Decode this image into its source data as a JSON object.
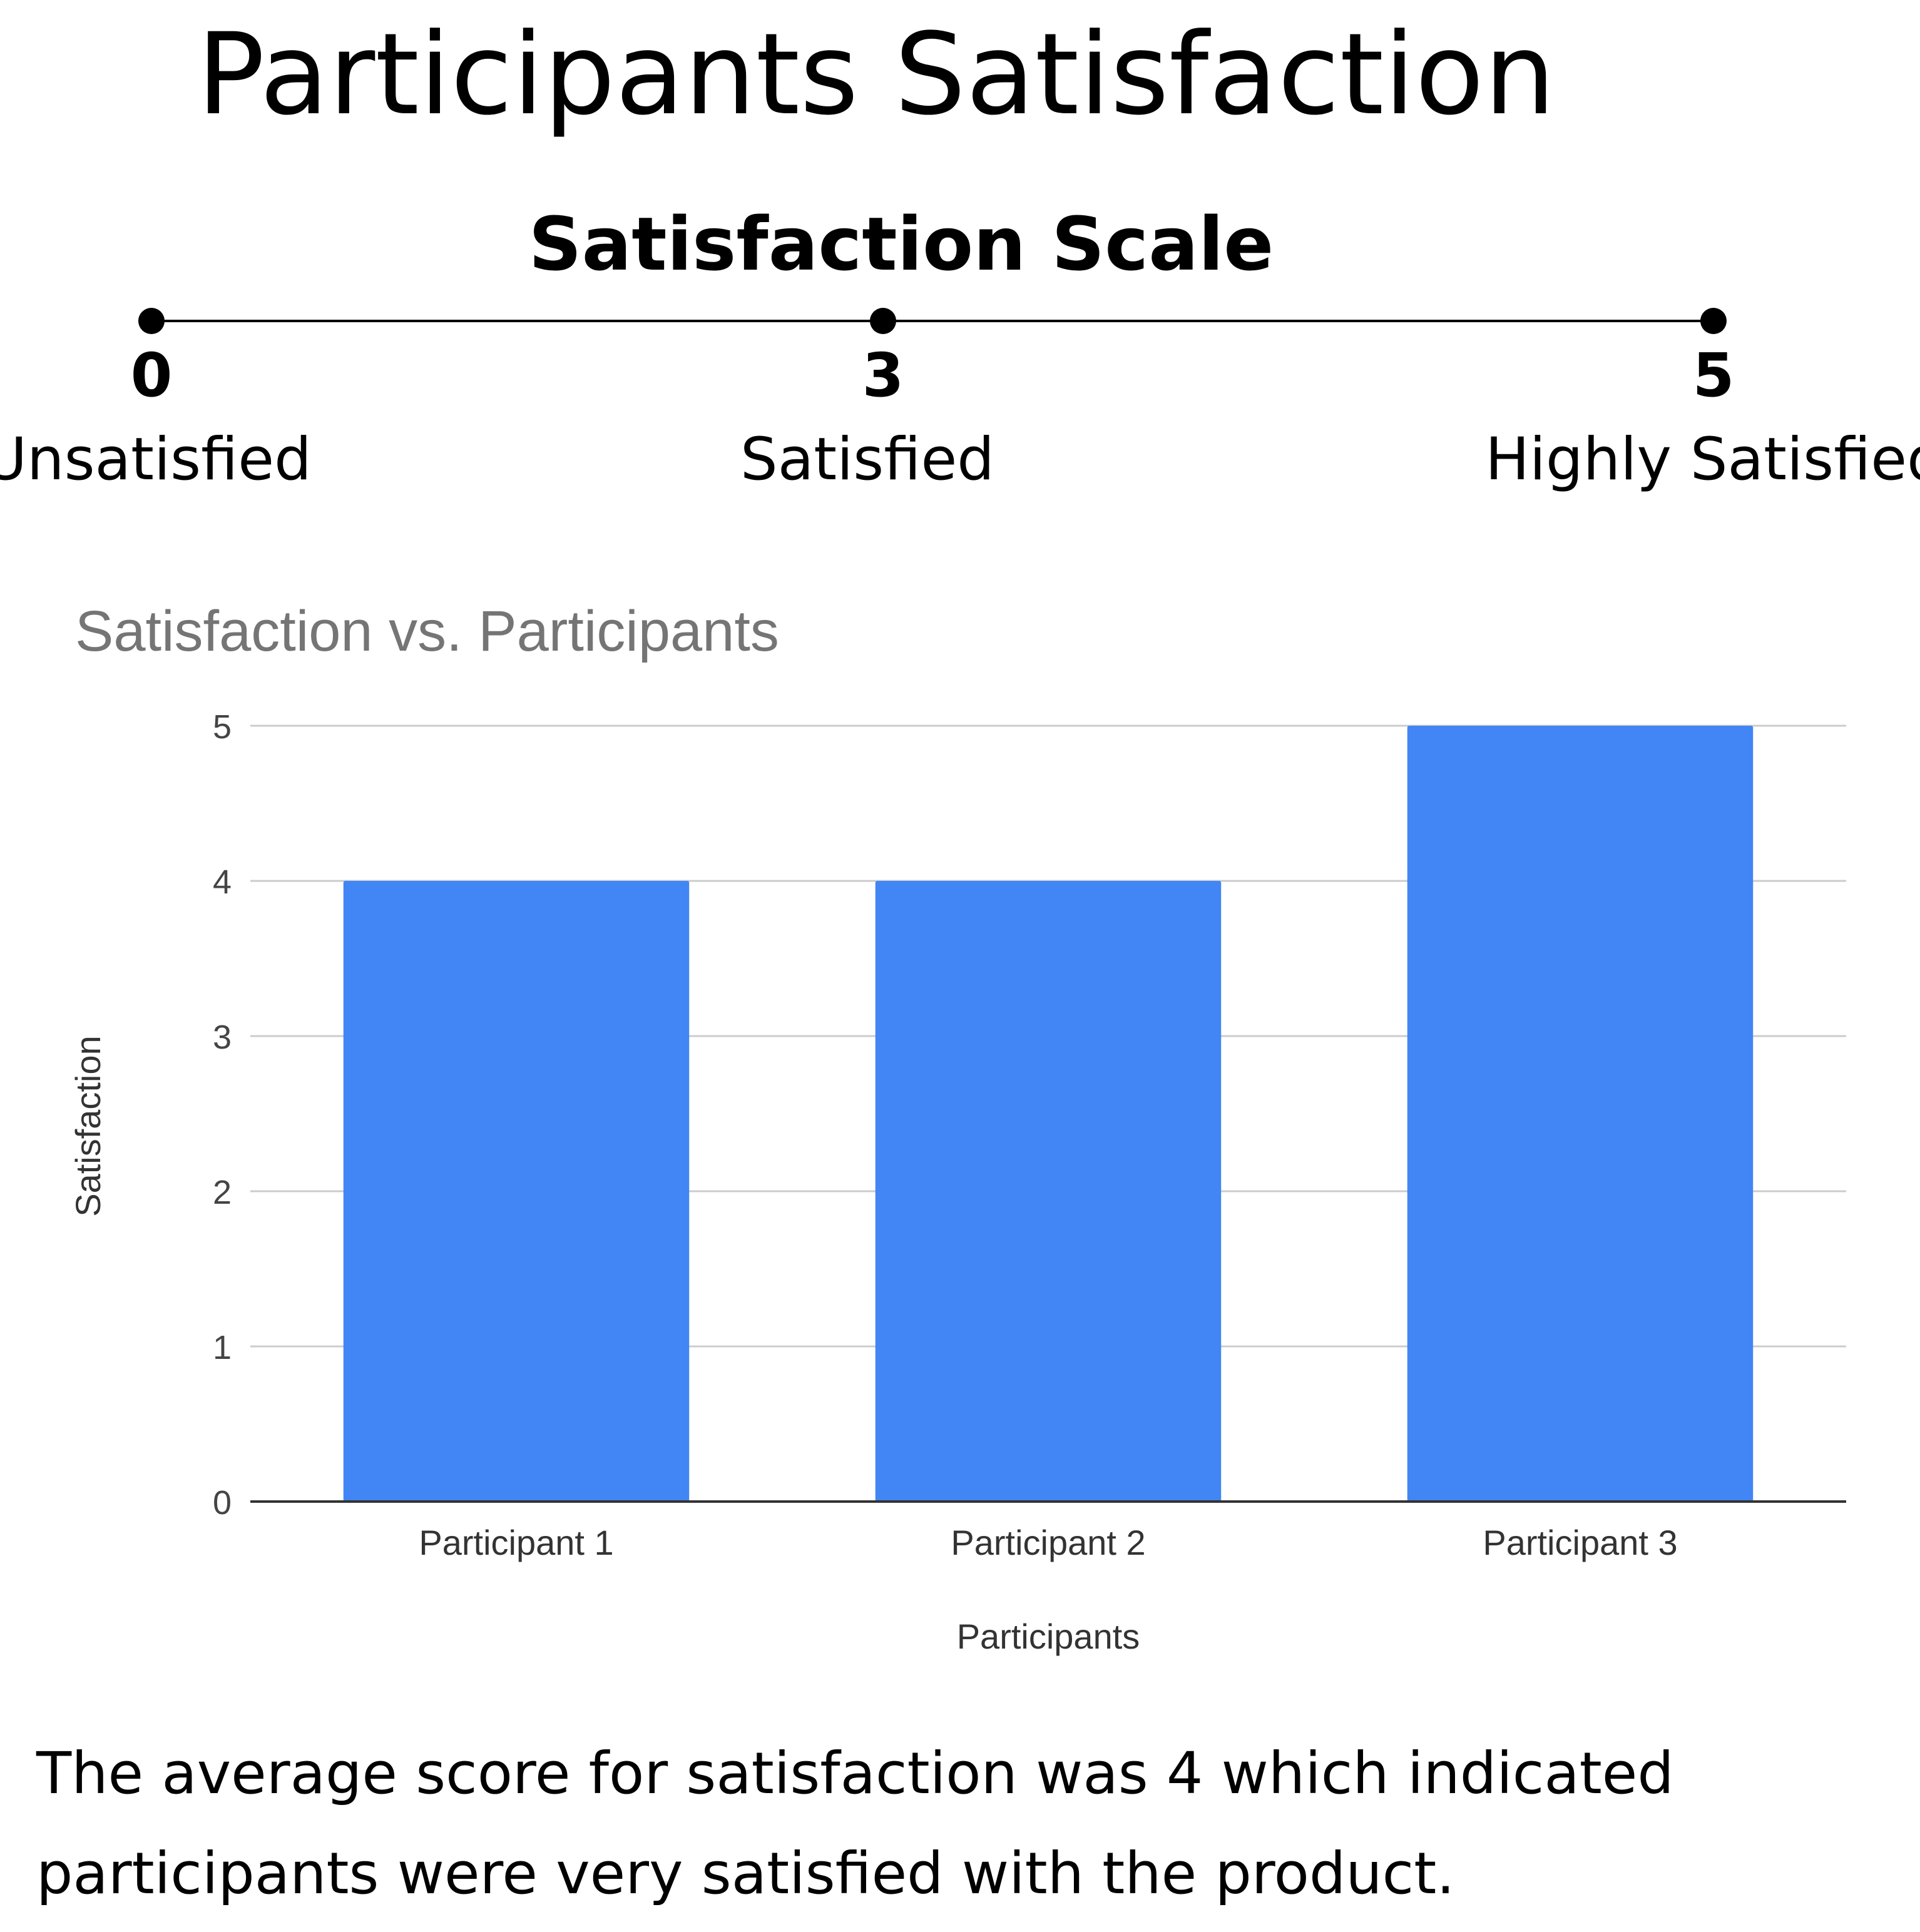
{
  "header": {
    "title": "Participants Satisfaction"
  },
  "scale": {
    "title": "Satisfaction Scale",
    "points": [
      {
        "value": "0",
        "label": "Unsatisfied"
      },
      {
        "value": "3",
        "label": "Satisfied"
      },
      {
        "value": "5",
        "label": "Highly Satisfied"
      }
    ]
  },
  "chart_data": {
    "type": "bar",
    "title": "Satisfaction vs. Participants",
    "xlabel": "Participants",
    "ylabel": "Satisfaction",
    "categories": [
      "Participant 1",
      "Participant 2",
      "Participant 3"
    ],
    "values": [
      4,
      4,
      5
    ],
    "ylim": [
      0,
      5
    ],
    "yticks": [
      0,
      1,
      2,
      3,
      4,
      5
    ],
    "grid": true,
    "legend": "none",
    "bar_color": "#4285f4",
    "title_color": "#757575",
    "grid_color": "#cccccc"
  },
  "summary": "The average score for satisfaction was 4 which indicated participants were very satisfied with the product."
}
